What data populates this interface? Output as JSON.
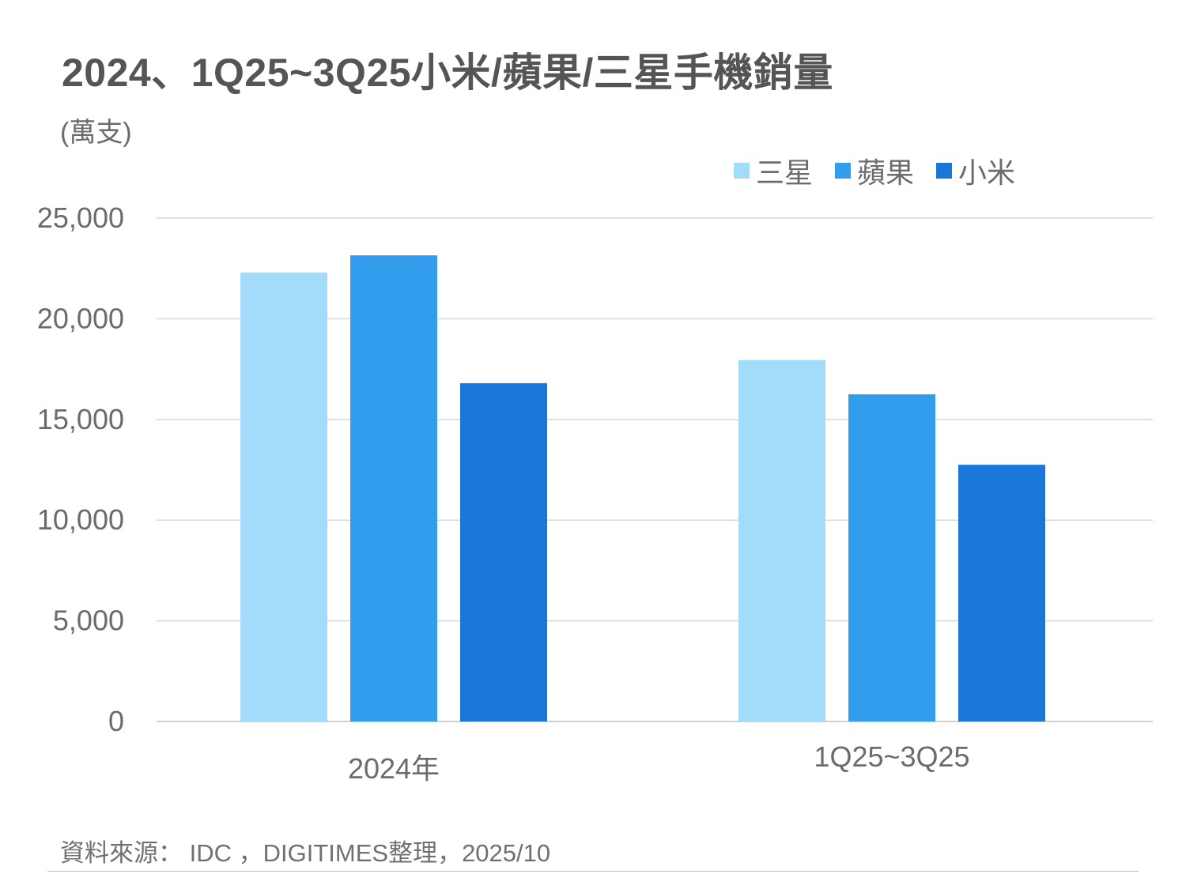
{
  "title": "2024、1Q25~3Q25小米/蘋果/三星手機銷量",
  "unit": "(萬支)",
  "source": "資料來源： IDC ，DIGITIMES整理，2025/10",
  "colors": {
    "samsung": "#a3dbfa",
    "apple": "#339ded",
    "xiaomi": "#1877d9",
    "grid": "#d9d9d9",
    "text": "#6b6b6b"
  },
  "chart_data": {
    "type": "bar",
    "categories": [
      "2024年",
      "1Q25~3Q25"
    ],
    "series": [
      {
        "name": "三星",
        "values": [
          22300,
          17950
        ]
      },
      {
        "name": "蘋果",
        "values": [
          23150,
          16250
        ]
      },
      {
        "name": "小米",
        "values": [
          16800,
          12750
        ]
      }
    ],
    "ylim": [
      0,
      25000
    ],
    "yticks": [
      "0",
      "5,000",
      "10,000",
      "15,000",
      "20,000",
      "25,000"
    ],
    "ytick_values": [
      0,
      5000,
      10000,
      15000,
      20000,
      25000
    ],
    "grid": true,
    "legend": "top-right"
  }
}
